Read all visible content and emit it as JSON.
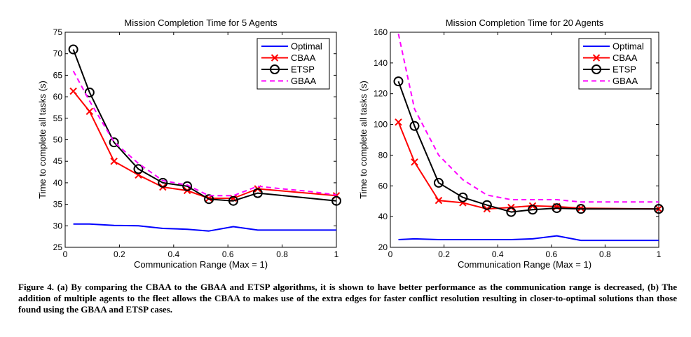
{
  "chart_data": [
    {
      "type": "line",
      "title": "Mission Completion Time for 5 Agents",
      "xlabel": "Communication Range (Max = 1)",
      "ylabel": "Time to complete all tasks (s)",
      "xlim": [
        0,
        1
      ],
      "ylim": [
        25,
        75
      ],
      "xticks": [
        0,
        0.2,
        0.4,
        0.6,
        0.8,
        1
      ],
      "xtick_labels": [
        "0",
        "0.2",
        "0.4",
        "0.6",
        "0.8",
        "1"
      ],
      "yticks": [
        25,
        30,
        35,
        40,
        45,
        50,
        55,
        60,
        65,
        70,
        75
      ],
      "ytick_labels": [
        "25",
        "30",
        "35",
        "40",
        "45",
        "50",
        "55",
        "60",
        "65",
        "70",
        "75"
      ],
      "grid": false,
      "legend_position": "top-right",
      "series": [
        {
          "name": "Optimal",
          "color": "#0000ff",
          "style": "solid",
          "marker": "none",
          "x": [
            0.03,
            0.09,
            0.18,
            0.27,
            0.36,
            0.45,
            0.53,
            0.62,
            0.71,
            0.8,
            0.9,
            1.0
          ],
          "y": [
            30.4,
            30.4,
            30.1,
            30.0,
            29.4,
            29.2,
            28.8,
            29.8,
            29.0,
            29.0,
            29.0,
            29.0
          ]
        },
        {
          "name": "CBAA",
          "color": "#ff0000",
          "style": "solid",
          "marker": "x",
          "x": [
            0.03,
            0.09,
            0.18,
            0.27,
            0.36,
            0.45,
            0.53,
            0.62,
            0.71,
            1.0
          ],
          "y": [
            61.3,
            56.6,
            45.0,
            41.8,
            39.0,
            38.2,
            36.4,
            36.4,
            38.6,
            37.0
          ]
        },
        {
          "name": "ETSP",
          "color": "#000000",
          "style": "solid",
          "marker": "o",
          "x": [
            0.03,
            0.09,
            0.18,
            0.27,
            0.36,
            0.45,
            0.53,
            0.62,
            0.71,
            1.0
          ],
          "y": [
            71.0,
            61.0,
            49.4,
            43.2,
            40.0,
            39.2,
            36.2,
            35.8,
            37.6,
            35.8
          ]
        },
        {
          "name": "GBAA",
          "color": "#ff00ff",
          "style": "dashed",
          "marker": "none",
          "x": [
            0.03,
            0.09,
            0.18,
            0.27,
            0.36,
            0.45,
            0.53,
            0.62,
            0.71,
            0.8,
            0.9,
            1.0
          ],
          "y": [
            66.0,
            59.0,
            49.5,
            44.5,
            40.5,
            39.5,
            37.0,
            37.0,
            39.2,
            38.6,
            38.0,
            37.2
          ]
        }
      ]
    },
    {
      "type": "line",
      "title": "Mission Completion Time for 20 Agents",
      "xlabel": "Communication Range (Max = 1)",
      "ylabel": "Time to complete all tasks (s)",
      "xlim": [
        0,
        1
      ],
      "ylim": [
        20,
        160
      ],
      "xticks": [
        0,
        0.2,
        0.4,
        0.6,
        0.8,
        1
      ],
      "xtick_labels": [
        "0",
        "0.2",
        "0.4",
        "0.6",
        "0.8",
        "1"
      ],
      "yticks": [
        20,
        40,
        60,
        80,
        100,
        120,
        140,
        160
      ],
      "ytick_labels": [
        "20",
        "40",
        "60",
        "80",
        "100",
        "120",
        "140",
        "160"
      ],
      "grid": false,
      "legend_position": "top-right",
      "series": [
        {
          "name": "Optimal",
          "color": "#0000ff",
          "style": "solid",
          "marker": "none",
          "x": [
            0.03,
            0.09,
            0.18,
            0.27,
            0.36,
            0.45,
            0.53,
            0.62,
            0.71,
            0.8,
            0.9,
            1.0
          ],
          "y": [
            25.0,
            25.5,
            25.0,
            25.0,
            25.0,
            25.0,
            25.5,
            27.5,
            24.5,
            24.5,
            24.5,
            24.5
          ]
        },
        {
          "name": "CBAA",
          "color": "#ff0000",
          "style": "solid",
          "marker": "x",
          "x": [
            0.03,
            0.09,
            0.18,
            0.27,
            0.36,
            0.45,
            0.53,
            0.62,
            0.71,
            1.0
          ],
          "y": [
            101.5,
            75.5,
            50.5,
            49.0,
            45.0,
            46.0,
            47.0,
            46.5,
            45.5,
            45.0
          ]
        },
        {
          "name": "ETSP",
          "color": "#000000",
          "style": "solid",
          "marker": "o",
          "x": [
            0.03,
            0.09,
            0.18,
            0.27,
            0.36,
            0.45,
            0.53,
            0.62,
            0.71,
            1.0
          ],
          "y": [
            128.0,
            99.0,
            62.0,
            52.5,
            47.5,
            43.0,
            44.5,
            45.5,
            45.0,
            45.0
          ]
        },
        {
          "name": "GBAA",
          "color": "#ff00ff",
          "style": "dashed",
          "marker": "none",
          "x": [
            0.03,
            0.09,
            0.18,
            0.27,
            0.36,
            0.45,
            0.53,
            0.62,
            0.71,
            0.8,
            0.9,
            1.0
          ],
          "y": [
            159.0,
            110.0,
            80.0,
            64.0,
            54.0,
            51.0,
            51.0,
            51.0,
            49.5,
            49.5,
            49.5,
            49.5
          ]
        }
      ]
    }
  ],
  "caption": "Figure 4.  (a) By comparing the CBAA to the GBAA and ETSP algorithms, it is shown to have better performance as the communication range is decreased, (b) The addition of multiple agents to the fleet allows the CBAA to makes use of the extra edges for faster conflict resolution resulting in closer-to-optimal solutions than those found using the GBAA and ETSP cases."
}
